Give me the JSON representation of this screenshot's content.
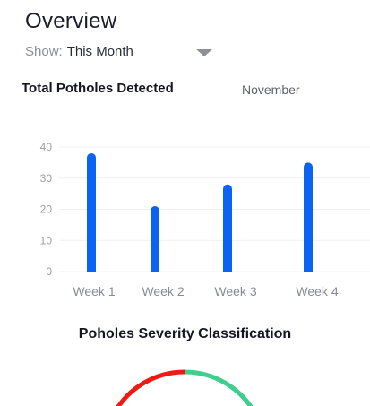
{
  "header": {
    "title": "Overview",
    "filter_label": "Show:",
    "filter_value": "This Month",
    "dropdown_icon": "caret-down-icon"
  },
  "potholes_card": {
    "title": "Total Potholes Detected",
    "month": "November"
  },
  "chart_data": {
    "type": "bar",
    "categories": [
      "Week 1",
      "Week 2",
      "Week 3",
      "Week 4"
    ],
    "values": [
      38,
      21,
      28,
      35
    ],
    "title": "Total Potholes Detected",
    "xlabel": "",
    "ylabel": "",
    "ylim": [
      0,
      40
    ],
    "yticks": [
      0,
      10,
      20,
      30,
      40
    ],
    "grid": true,
    "bar_color": "#0a63f5"
  },
  "severity_section": {
    "title": "Poholes Severity Classification",
    "gauge_colors": [
      "#ef1a14",
      "#3ecf8e"
    ]
  }
}
